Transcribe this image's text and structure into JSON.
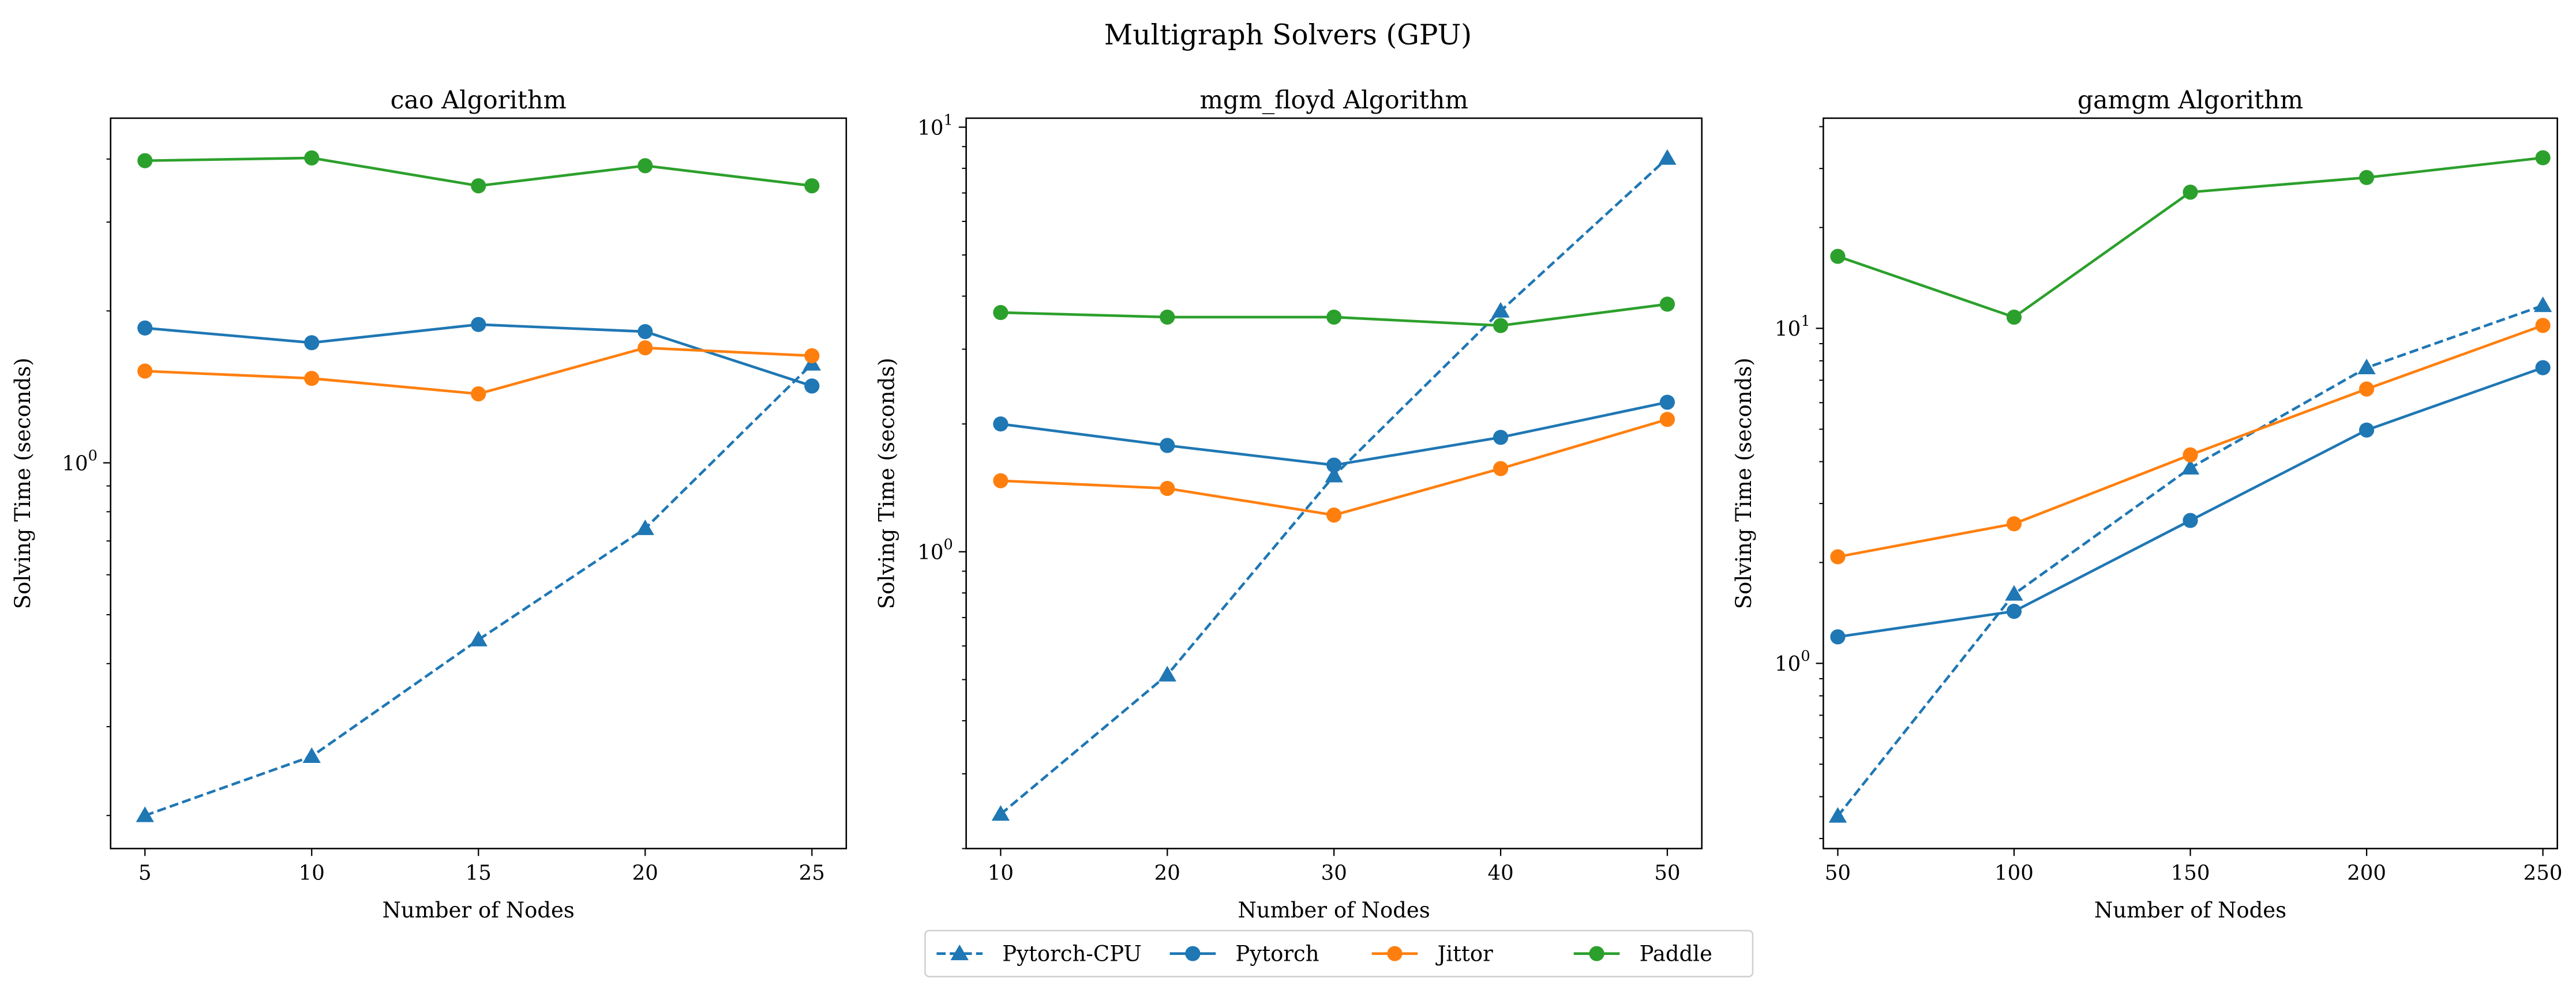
{
  "chart_data": {
    "suptitle": "Multigraph Solvers (GPU)",
    "legend": {
      "placement": "bottom-center",
      "entries": [
        "Pytorch-CPU",
        "Pytorch",
        "Jittor",
        "Paddle"
      ]
    },
    "series_styles": [
      {
        "name": "Pytorch-CPU",
        "color": "#1f77b4",
        "dash": true,
        "marker": "triangle"
      },
      {
        "name": "Pytorch",
        "color": "#1f77b4",
        "dash": false,
        "marker": "circle"
      },
      {
        "name": "Jittor",
        "color": "#ff7f0e",
        "dash": false,
        "marker": "circle"
      },
      {
        "name": "Paddle",
        "color": "#2ca02c",
        "dash": false,
        "marker": "circle"
      }
    ],
    "charts": [
      {
        "type": "line",
        "title": "cao Algorithm",
        "xlabel": "Number of Nodes",
        "ylabel": "Solving Time (seconds)",
        "yscale": "log",
        "grid": false,
        "x": [
          5,
          10,
          15,
          20,
          25
        ],
        "xticks": [
          "5",
          "10",
          "15",
          "20",
          "25"
        ],
        "xlim": [
          3.97,
          26.03
        ],
        "ylim": [
          0.172,
          4.82
        ],
        "yticks": [
          {
            "value": 1,
            "label": "10",
            "exp": "0"
          }
        ],
        "series": [
          {
            "name": "Pytorch-CPU",
            "values": [
              0.2,
              0.262,
              0.446,
              0.741,
              1.57
            ]
          },
          {
            "name": "Pytorch",
            "values": [
              1.85,
              1.73,
              1.88,
              1.82,
              1.42
            ]
          },
          {
            "name": "Jittor",
            "values": [
              1.52,
              1.47,
              1.37,
              1.69,
              1.63
            ]
          },
          {
            "name": "Paddle",
            "values": [
              3.97,
              4.02,
              3.54,
              3.88,
              3.54
            ]
          }
        ]
      },
      {
        "type": "line",
        "title": "mgm_floyd Algorithm",
        "xlabel": "Number of Nodes",
        "ylabel": "Solving Time (seconds)",
        "yscale": "log",
        "grid": false,
        "x": [
          10,
          20,
          30,
          40,
          50
        ],
        "xticks": [
          "10",
          "20",
          "30",
          "40",
          "50"
        ],
        "xlim": [
          7.93,
          52.07
        ],
        "ylim": [
          0.2,
          10.5
        ],
        "yticks": [
          {
            "value": 1,
            "label": "10",
            "exp": "0"
          },
          {
            "value": 10,
            "label": "10",
            "exp": "1"
          }
        ],
        "series": [
          {
            "name": "Pytorch-CPU",
            "values": [
              0.241,
              0.513,
              1.51,
              3.69,
              8.45
            ]
          },
          {
            "name": "Pytorch",
            "values": [
              2.0,
              1.78,
              1.6,
              1.86,
              2.25
            ]
          },
          {
            "name": "Jittor",
            "values": [
              1.47,
              1.41,
              1.22,
              1.57,
              2.05
            ]
          },
          {
            "name": "Paddle",
            "values": [
              3.66,
              3.57,
              3.57,
              3.41,
              3.83
            ]
          }
        ]
      },
      {
        "type": "line",
        "title": "gamgm Algorithm",
        "xlabel": "Number of Nodes",
        "ylabel": "Solving Time (seconds)",
        "yscale": "log",
        "grid": false,
        "x": [
          50,
          100,
          150,
          200,
          250
        ],
        "xticks": [
          "50",
          "100",
          "150",
          "200",
          "250"
        ],
        "xlim": [
          45.9,
          254.1
        ],
        "ylim": [
          0.28,
          42.4
        ],
        "yticks": [
          {
            "value": 1,
            "label": "10",
            "exp": "0"
          },
          {
            "value": 10,
            "label": "10",
            "exp": "1"
          }
        ],
        "series": [
          {
            "name": "Pytorch-CPU",
            "values": [
              0.35,
              1.61,
              3.83,
              7.63,
              11.7
            ]
          },
          {
            "name": "Pytorch",
            "values": [
              1.2,
              1.43,
              2.67,
              4.97,
              7.63
            ]
          },
          {
            "name": "Jittor",
            "values": [
              2.08,
              2.61,
              4.19,
              6.59,
              10.2
            ]
          },
          {
            "name": "Paddle",
            "values": [
              16.4,
              10.8,
              25.5,
              28.2,
              32.3
            ]
          }
        ]
      }
    ]
  }
}
